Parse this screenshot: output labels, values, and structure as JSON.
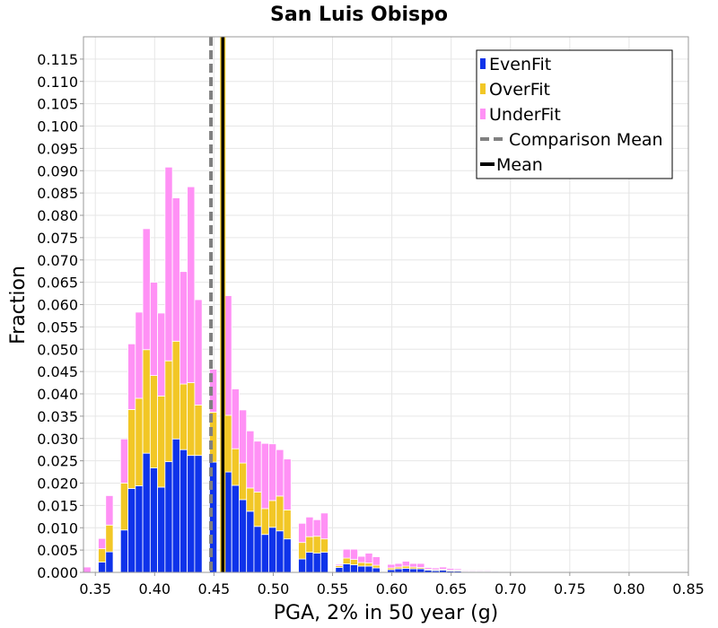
{
  "chart_data": {
    "type": "bar",
    "stacked": true,
    "title": "San Luis Obispo",
    "xlabel": "PGA, 2% in 50 year (g)",
    "ylabel": "Fraction",
    "xlim": [
      0.34,
      0.85
    ],
    "ylim": [
      0,
      0.12
    ],
    "bin_width": 0.00625,
    "x_ticks": [
      "0.35",
      "0.40",
      "0.45",
      "0.50",
      "0.55",
      "0.60",
      "0.65",
      "0.70",
      "0.75",
      "0.80",
      "0.85"
    ],
    "y_ticks": [
      "0.000",
      "0.005",
      "0.010",
      "0.015",
      "0.020",
      "0.025",
      "0.030",
      "0.035",
      "0.040",
      "0.045",
      "0.050",
      "0.055",
      "0.060",
      "0.065",
      "0.070",
      "0.075",
      "0.080",
      "0.085",
      "0.090",
      "0.095",
      "0.100",
      "0.105",
      "0.110",
      "0.115"
    ],
    "bin_starts": [
      0.34,
      0.34625,
      0.3525,
      0.35875,
      0.365,
      0.37125,
      0.3775,
      0.38375,
      0.39,
      0.39625,
      0.4025,
      0.40875,
      0.415,
      0.42125,
      0.4275,
      0.43375,
      0.44,
      0.44625,
      0.4525,
      0.45875,
      0.465,
      0.47125,
      0.4775,
      0.48375,
      0.49,
      0.49625,
      0.5025,
      0.50875,
      0.515,
      0.52125,
      0.5275,
      0.53375,
      0.54,
      0.54625,
      0.5525,
      0.55875,
      0.565,
      0.57125,
      0.5775,
      0.58375,
      0.59,
      0.59625,
      0.6025,
      0.60875,
      0.615,
      0.62125,
      0.6275,
      0.63375,
      0.64,
      0.64625,
      0.6525,
      0.65875,
      0.665,
      0.67125,
      0.6775,
      0.68375,
      0.69,
      0.69625,
      0.7025,
      0.70875,
      0.715,
      0.72125,
      0.7275,
      0.73375,
      0.74,
      0.74625,
      0.7525,
      0.75875,
      0.765,
      0.77125,
      0.7775,
      0.78375,
      0.79,
      0.79625,
      0.8025,
      0.80875,
      0.815,
      0.82125,
      0.8275,
      0.83375,
      0.84,
      0.84625
    ],
    "series": [
      {
        "name": "EvenFit",
        "color": "#0f33ea",
        "values": [
          0,
          0,
          0.0023,
          0.0046,
          0,
          0.0095,
          0.0188,
          0.0194,
          0.0267,
          0.0234,
          0.0191,
          0.0248,
          0.0299,
          0.0275,
          0.0262,
          0.0262,
          0,
          0.0247,
          0,
          0.0225,
          0.0195,
          0.0163,
          0.0137,
          0.0103,
          0.0085,
          0.0101,
          0.0093,
          0.0075,
          0,
          0.003,
          0.0045,
          0.0043,
          0.0045,
          0,
          0.0011,
          0.0019,
          0.0017,
          0.0014,
          0.0014,
          0.001,
          0,
          0.0006,
          0.0008,
          0.0009,
          0.0008,
          0.0008,
          0.0005,
          0.0004,
          0.0005,
          0.0003,
          0.0003,
          0.0002,
          0.0002,
          0.0002,
          0.0002,
          0.0002,
          0.0001,
          0,
          0.0001,
          0,
          0.0001,
          0,
          0.0001,
          0,
          0,
          0,
          0,
          0,
          0,
          0,
          0,
          0,
          0,
          0,
          0,
          0,
          0,
          0,
          0,
          0,
          0,
          0
        ]
      },
      {
        "name": "OverFit",
        "color": "#f2c726",
        "values": [
          0,
          0,
          0.003,
          0.006,
          0,
          0.0105,
          0.0177,
          0.0196,
          0.0232,
          0.0207,
          0.0204,
          0.0226,
          0.0219,
          0.0147,
          0.0163,
          0.0113,
          0,
          0.0112,
          0,
          0.0127,
          0.0082,
          0.0082,
          0.0052,
          0.0077,
          0.0058,
          0.006,
          0.0078,
          0.0065,
          0,
          0.0037,
          0.0035,
          0.0038,
          0.003,
          0,
          0.0004,
          0.0013,
          0.0012,
          0.0008,
          0.0007,
          0.0006,
          0,
          0.0004,
          0.0004,
          0.0005,
          0.0004,
          0.0003,
          0.0002,
          0.0002,
          0.0002,
          0.0002,
          0.0002,
          0.0001,
          0.0001,
          0.0001,
          0.0001,
          0,
          0,
          0,
          0,
          0,
          0,
          0,
          0,
          0,
          0,
          0,
          0,
          0,
          0,
          0,
          0,
          0,
          0,
          0,
          0,
          0,
          0,
          0,
          0,
          0,
          0,
          0
        ]
      },
      {
        "name": "UnderFit",
        "color": "#ff91f5",
        "values": [
          0.0012,
          0,
          0.0023,
          0.0066,
          0,
          0.0099,
          0.0147,
          0.0193,
          0.0271,
          0.0209,
          0.0186,
          0.0434,
          0.0321,
          0.0252,
          0.0439,
          0.0236,
          0,
          0.0096,
          0,
          0.0268,
          0.0134,
          0.0119,
          0.0128,
          0.0114,
          0.0146,
          0.0127,
          0.0104,
          0.0114,
          0,
          0.0043,
          0.0044,
          0.0037,
          0.0058,
          0,
          0.0003,
          0.002,
          0.0023,
          0.0014,
          0.0022,
          0.0019,
          0,
          0.0008,
          0.0008,
          0.0011,
          0.0008,
          0.0009,
          0.0004,
          0.0004,
          0.0005,
          0.0004,
          0.0003,
          0.0002,
          0.0002,
          0.0002,
          0.0002,
          0.0001,
          0.0001,
          0,
          0.0001,
          0,
          0.0001,
          0,
          0.0001,
          0,
          0,
          0,
          0,
          0,
          0,
          0,
          0,
          0,
          0,
          0,
          0,
          0,
          0,
          0,
          0,
          0,
          0,
          0.0001
        ]
      }
    ],
    "vlines": [
      {
        "name": "Comparison Mean",
        "x": 0.4475,
        "color": "#808080",
        "style": "dashed"
      },
      {
        "name": "Mean",
        "x": 0.4575,
        "color": "#000000",
        "style": "solid"
      }
    ],
    "legend": {
      "position": "top-right",
      "entries": [
        {
          "label": "EvenFit",
          "kind": "swatch",
          "color": "#0f33ea"
        },
        {
          "label": "OverFit",
          "kind": "swatch",
          "color": "#f2c726"
        },
        {
          "label": "UnderFit",
          "kind": "swatch",
          "color": "#ff91f5"
        },
        {
          "label": "Comparison Mean",
          "kind": "dashed",
          "color": "#808080"
        },
        {
          "label": "Mean",
          "kind": "solid",
          "color": "#000000"
        }
      ]
    },
    "grid": true
  }
}
